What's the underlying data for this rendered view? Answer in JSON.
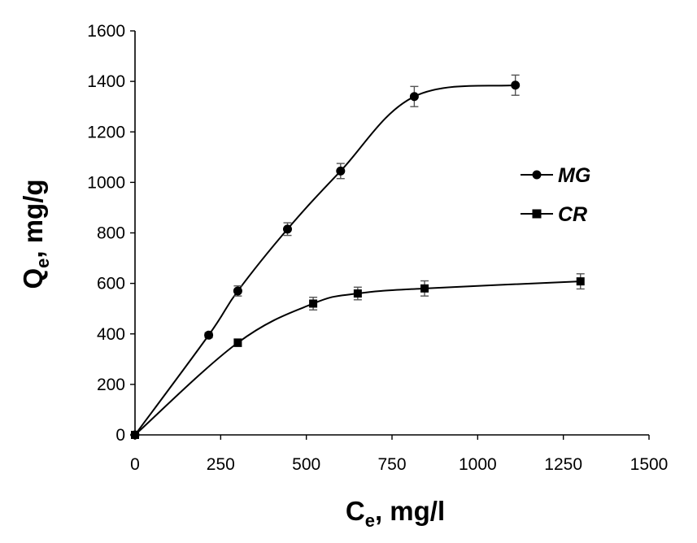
{
  "chart_data": {
    "type": "scatter",
    "title": "",
    "xlabel": {
      "main": "C",
      "sub": "e",
      "rest": ", mg/l"
    },
    "ylabel": {
      "main": "Q",
      "sub": "e",
      "rest": ", mg/g"
    },
    "xlim": [
      0,
      1500
    ],
    "ylim": [
      0,
      1600
    ],
    "x_ticks": [
      0,
      250,
      500,
      750,
      1000,
      1250,
      1500
    ],
    "y_ticks": [
      0,
      200,
      400,
      600,
      800,
      1000,
      1200,
      1400,
      1600
    ],
    "grid": false,
    "legend_position": "right",
    "series": [
      {
        "name": "MG",
        "marker": "circle",
        "color": "#000000",
        "x": [
          0,
          215,
          300,
          445,
          600,
          815,
          1110
        ],
        "y": [
          0,
          395,
          570,
          815,
          1045,
          1340,
          1385
        ],
        "error": [
          0,
          10,
          20,
          25,
          30,
          40,
          40
        ]
      },
      {
        "name": "CR",
        "marker": "square",
        "color": "#000000",
        "x": [
          0,
          300,
          520,
          650,
          845,
          1300
        ],
        "y": [
          0,
          365,
          520,
          560,
          580,
          608
        ],
        "error": [
          0,
          15,
          25,
          25,
          30,
          30
        ]
      }
    ]
  }
}
